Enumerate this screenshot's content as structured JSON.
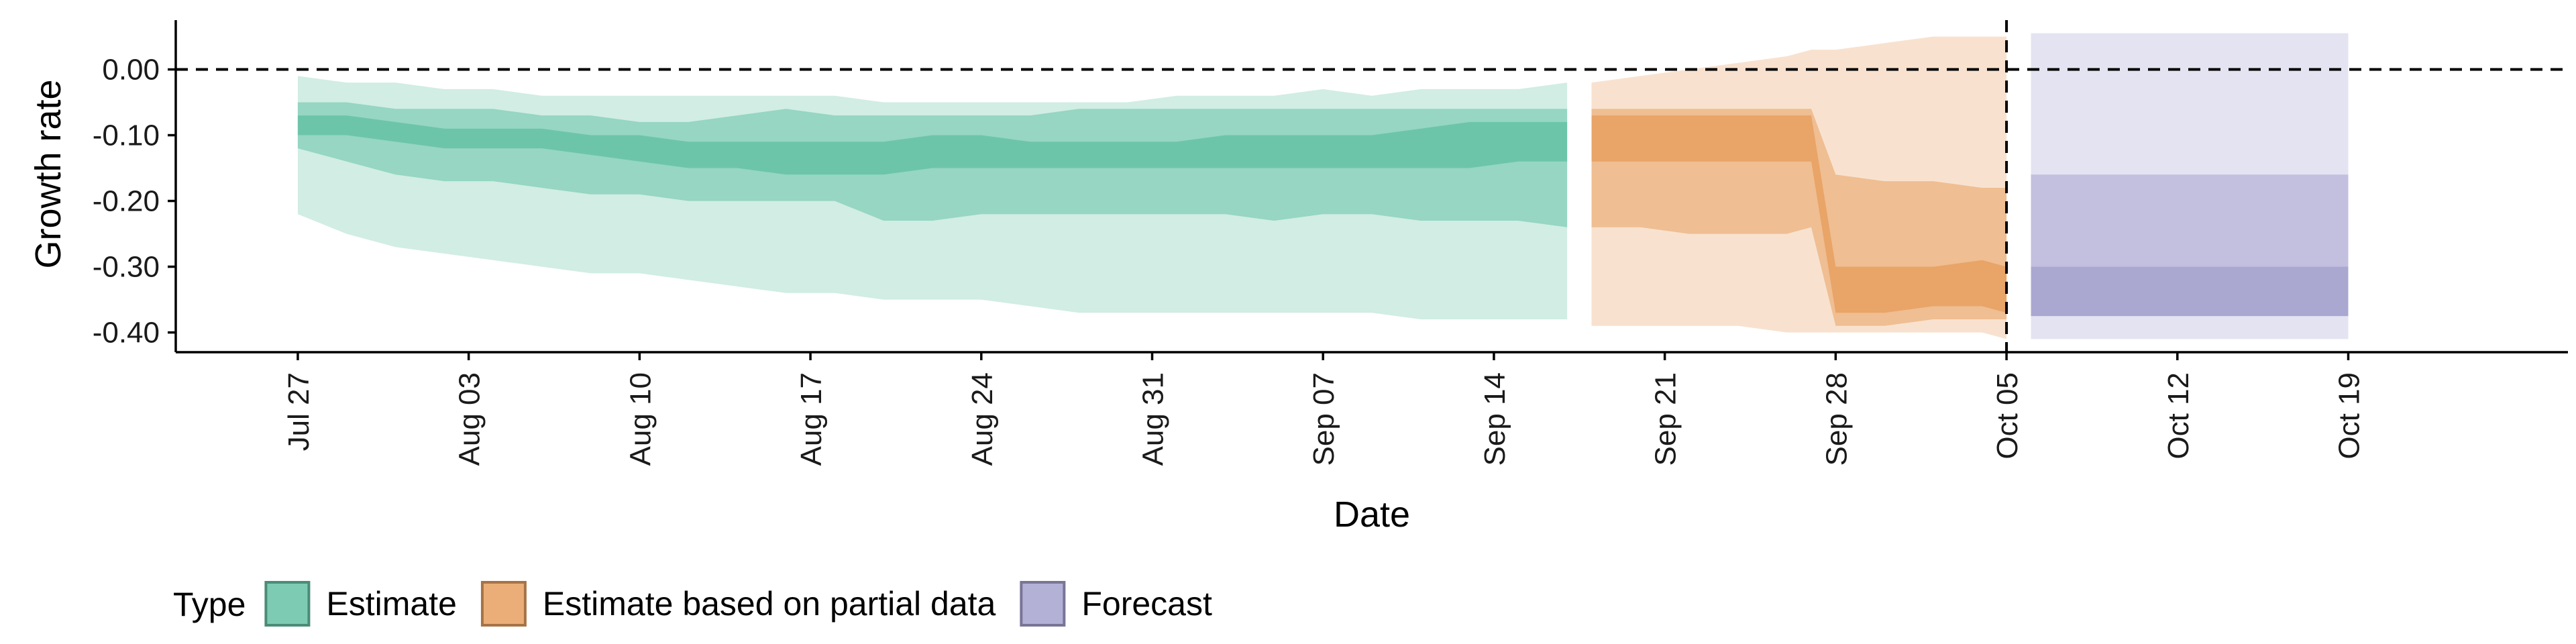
{
  "chart_data": {
    "type": "area",
    "xlabel": "Date",
    "ylabel": "Growth rate",
    "ylim": [
      -0.43,
      0.075
    ],
    "xlim": [
      "2020-07-22",
      "2020-10-28"
    ],
    "x_ticks": [
      "2020-07-27",
      "2020-08-03",
      "2020-08-10",
      "2020-08-17",
      "2020-08-24",
      "2020-08-31",
      "2020-09-07",
      "2020-09-14",
      "2020-09-21",
      "2020-09-28",
      "2020-10-05",
      "2020-10-12",
      "2020-10-19"
    ],
    "x_tick_labels": [
      "Jul 27",
      "Aug 03",
      "Aug 10",
      "Aug 17",
      "Aug 24",
      "Aug 31",
      "Sep 07",
      "Sep 14",
      "Sep 21",
      "Sep 28",
      "Oct 05",
      "Oct 12",
      "Oct 19"
    ],
    "y_ticks": [
      0,
      -0.1,
      -0.2,
      -0.3,
      -0.4
    ],
    "y_tick_labels": [
      "0.00",
      "-0.10",
      "-0.20",
      "-0.30",
      "-0.40"
    ],
    "reference_lines": {
      "y": 0,
      "x": "2020-10-05"
    },
    "legend": {
      "title": "Type",
      "position": "bottom-left"
    },
    "series": [
      {
        "name": "Estimate",
        "color": "#66c2a5",
        "x": [
          "2020-07-27",
          "2020-07-29",
          "2020-07-31",
          "2020-08-02",
          "2020-08-04",
          "2020-08-06",
          "2020-08-08",
          "2020-08-10",
          "2020-08-12",
          "2020-08-14",
          "2020-08-16",
          "2020-08-18",
          "2020-08-20",
          "2020-08-22",
          "2020-08-24",
          "2020-08-26",
          "2020-08-28",
          "2020-08-30",
          "2020-09-01",
          "2020-09-03",
          "2020-09-05",
          "2020-09-07",
          "2020-09-09",
          "2020-09-11",
          "2020-09-13",
          "2020-09-15",
          "2020-09-17"
        ],
        "bands": [
          {
            "level": "outer",
            "lower": [
              -0.22,
              -0.25,
              -0.27,
              -0.28,
              -0.29,
              -0.3,
              -0.31,
              -0.31,
              -0.32,
              -0.33,
              -0.34,
              -0.34,
              -0.35,
              -0.35,
              -0.35,
              -0.36,
              -0.37,
              -0.37,
              -0.37,
              -0.37,
              -0.37,
              -0.37,
              -0.37,
              -0.38,
              -0.38,
              -0.38,
              -0.38
            ],
            "upper": [
              -0.01,
              -0.02,
              -0.02,
              -0.03,
              -0.03,
              -0.04,
              -0.04,
              -0.04,
              -0.04,
              -0.04,
              -0.04,
              -0.04,
              -0.05,
              -0.05,
              -0.05,
              -0.05,
              -0.05,
              -0.05,
              -0.04,
              -0.04,
              -0.04,
              -0.03,
              -0.04,
              -0.03,
              -0.03,
              -0.03,
              -0.02
            ]
          },
          {
            "level": "middle",
            "lower": [
              -0.12,
              -0.14,
              -0.16,
              -0.17,
              -0.17,
              -0.18,
              -0.19,
              -0.19,
              -0.2,
              -0.2,
              -0.2,
              -0.2,
              -0.23,
              -0.23,
              -0.22,
              -0.22,
              -0.22,
              -0.22,
              -0.22,
              -0.22,
              -0.23,
              -0.22,
              -0.22,
              -0.23,
              -0.23,
              -0.23,
              -0.24
            ],
            "upper": [
              -0.05,
              -0.05,
              -0.06,
              -0.06,
              -0.06,
              -0.07,
              -0.07,
              -0.08,
              -0.08,
              -0.07,
              -0.06,
              -0.07,
              -0.07,
              -0.07,
              -0.07,
              -0.07,
              -0.06,
              -0.06,
              -0.06,
              -0.06,
              -0.06,
              -0.06,
              -0.06,
              -0.06,
              -0.06,
              -0.06,
              -0.06
            ]
          },
          {
            "level": "inner",
            "lower": [
              -0.1,
              -0.1,
              -0.11,
              -0.12,
              -0.12,
              -0.12,
              -0.13,
              -0.14,
              -0.15,
              -0.15,
              -0.16,
              -0.16,
              -0.16,
              -0.15,
              -0.15,
              -0.15,
              -0.15,
              -0.15,
              -0.15,
              -0.15,
              -0.15,
              -0.15,
              -0.15,
              -0.15,
              -0.15,
              -0.14,
              -0.14
            ],
            "upper": [
              -0.07,
              -0.07,
              -0.08,
              -0.09,
              -0.09,
              -0.09,
              -0.1,
              -0.1,
              -0.11,
              -0.11,
              -0.11,
              -0.11,
              -0.11,
              -0.1,
              -0.1,
              -0.11,
              -0.11,
              -0.11,
              -0.11,
              -0.1,
              -0.1,
              -0.1,
              -0.1,
              -0.09,
              -0.08,
              -0.08,
              -0.08
            ]
          }
        ]
      },
      {
        "name": "Estimate based on partial data",
        "color": "#e8a060",
        "x": [
          "2020-09-18",
          "2020-09-20",
          "2020-09-22",
          "2020-09-24",
          "2020-09-26",
          "2020-09-27",
          "2020-09-28",
          "2020-09-30",
          "2020-10-02",
          "2020-10-04",
          "2020-10-05"
        ],
        "bands": [
          {
            "level": "outer",
            "lower": [
              -0.39,
              -0.39,
              -0.39,
              -0.39,
              -0.4,
              -0.4,
              -0.4,
              -0.4,
              -0.4,
              -0.4,
              -0.41
            ],
            "upper": [
              -0.02,
              -0.01,
              0.0,
              0.01,
              0.02,
              0.03,
              0.03,
              0.04,
              0.05,
              0.05,
              0.05
            ]
          },
          {
            "level": "middle",
            "lower": [
              -0.24,
              -0.24,
              -0.25,
              -0.25,
              -0.25,
              -0.24,
              -0.39,
              -0.39,
              -0.38,
              -0.38,
              -0.38
            ],
            "upper": [
              -0.06,
              -0.06,
              -0.06,
              -0.06,
              -0.06,
              -0.06,
              -0.16,
              -0.17,
              -0.17,
              -0.18,
              -0.18
            ]
          },
          {
            "level": "inner",
            "lower": [
              -0.14,
              -0.14,
              -0.14,
              -0.14,
              -0.14,
              -0.14,
              -0.37,
              -0.37,
              -0.36,
              -0.36,
              -0.37
            ],
            "upper": [
              -0.07,
              -0.07,
              -0.07,
              -0.07,
              -0.07,
              -0.07,
              -0.3,
              -0.3,
              -0.3,
              -0.29,
              -0.3
            ]
          }
        ]
      },
      {
        "name": "Forecast",
        "color": "#a6a3cf",
        "x": [
          "2020-10-06",
          "2020-10-19"
        ],
        "bands": [
          {
            "level": "outer",
            "lower": [
              -0.41,
              -0.41
            ],
            "upper": [
              0.055,
              0.055
            ]
          },
          {
            "level": "middle",
            "lower": [
              -0.375,
              -0.375
            ],
            "upper": [
              -0.16,
              -0.16
            ]
          },
          {
            "level": "inner",
            "lower": [
              -0.375,
              -0.375
            ],
            "upper": [
              -0.3,
              -0.3
            ]
          }
        ]
      }
    ]
  }
}
